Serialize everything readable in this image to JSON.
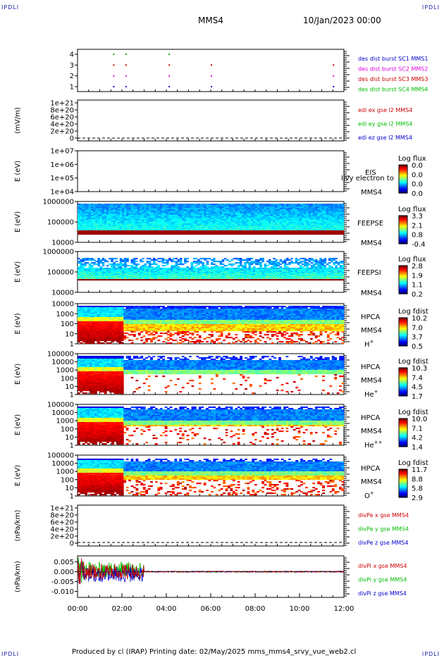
{
  "corner_label": "IPDLI",
  "header": {
    "spacecraft": "MMS4",
    "date": "10/Jan/2023 00:00"
  },
  "footer": {
    "text": "Produced by cl (IRAP)   Printing date: 02/May/2025   mms_mms4_srvy_vue_web2.cl"
  },
  "colors": {
    "red": "#cc0000",
    "green": "#00bb00",
    "blue": "#0000cc",
    "magenta": "#dd00dd",
    "black": "#000000"
  },
  "chart_data": [
    {
      "type": "scatter",
      "panel": "burst",
      "yticks": [
        "4",
        "3",
        "2",
        "1"
      ],
      "legend": [
        {
          "text": "des dist burst SC1 MMS1",
          "color": "#0000cc"
        },
        {
          "text": "des dist burst SC2 MMS2",
          "color": "#dd00dd"
        },
        {
          "text": "des dist burst SC3 MMS3",
          "color": "#cc0000"
        },
        {
          "text": "des dist burst SC4 MMS4",
          "color": "#00bb00"
        }
      ],
      "series": [
        {
          "name": "SC4",
          "y": 4,
          "x": [
            1.6,
            2.15,
            4.1
          ]
        },
        {
          "name": "SC3",
          "y": 3,
          "x": [
            1.6,
            2.15,
            4.1,
            6.0,
            11.5
          ]
        },
        {
          "name": "SC2",
          "y": 2,
          "x": [
            1.6,
            2.15,
            4.1,
            6.0,
            11.5
          ]
        },
        {
          "name": "SC1",
          "y": 1,
          "x": [
            1.6,
            2.15,
            4.1,
            6.0,
            11.5
          ]
        }
      ]
    },
    {
      "type": "line",
      "panel": "edi_e",
      "ylabel": "(mV/m)",
      "yticks": [
        "1e+21",
        "8e+20",
        "6e+20",
        "4e+20",
        "2e+20",
        "0"
      ],
      "legend": [
        {
          "text": "edi ex gse l2 MMS4",
          "color": "#cc0000"
        },
        {
          "text": "edi ey gse l2 MMS4",
          "color": "#00bb00"
        },
        {
          "text": "edi ez gse l2 MMS4",
          "color": "#0000cc"
        }
      ]
    },
    {
      "type": "heatmap",
      "panel": "eis",
      "ylabel": "E (eV)",
      "yticks": [
        "1e+07",
        "1e+06",
        "1e+05",
        "1e+04"
      ],
      "instrument": "EIS",
      "subtitle": "Ilvy electron to",
      "sc": "MMS4",
      "colorbar": {
        "title": "Log flux",
        "ticks": [
          "0.0",
          "0.0",
          "0.0",
          "0.0"
        ]
      }
    },
    {
      "type": "heatmap",
      "panel": "feeps_e",
      "ylabel": "E (eV)",
      "yticks": [
        "1000000",
        "100000",
        "10000"
      ],
      "instrument": "FEEPSE",
      "sc": "MMS4",
      "colorbar": {
        "title": "Log flux",
        "ticks": [
          "3.3",
          "2.1",
          "0.8",
          "-0.4"
        ]
      }
    },
    {
      "type": "heatmap",
      "panel": "feeps_i",
      "ylabel": "E (eV)",
      "yticks": [
        "1000000",
        "100000",
        "10000"
      ],
      "instrument": "FEEPSI",
      "sc": "MMS4",
      "colorbar": {
        "title": "Log flux",
        "ticks": [
          "2.8",
          "1.9",
          "1.1",
          "0.2"
        ]
      }
    },
    {
      "type": "heatmap",
      "panel": "hpca_h",
      "ylabel": "E (eV)",
      "yticks": [
        "10000",
        "1000",
        "100",
        "10",
        "1"
      ],
      "instrument": "HPCA",
      "sc": "MMS4",
      "species": "H",
      "charge": "+",
      "colorbar": {
        "title": "Log fdist",
        "ticks": [
          "10.2",
          "7.0",
          "3.7",
          "0.5"
        ]
      }
    },
    {
      "type": "heatmap",
      "panel": "hpca_he",
      "ylabel": "E (eV)",
      "yticks": [
        "100000",
        "10000",
        "1000",
        "100",
        "10",
        "1"
      ],
      "instrument": "HPCA",
      "sc": "MMS4",
      "species": "He",
      "charge": "+",
      "colorbar": {
        "title": "Log fdist",
        "ticks": [
          "10.3",
          "7.4",
          "4.5",
          "1.7"
        ]
      }
    },
    {
      "type": "heatmap",
      "panel": "hpca_hepp",
      "ylabel": "E (eV)",
      "yticks": [
        "100000",
        "10000",
        "1000",
        "100",
        "10",
        "1"
      ],
      "instrument": "HPCA",
      "sc": "MMS4",
      "species": "He",
      "charge": "++",
      "colorbar": {
        "title": "Log fdist",
        "ticks": [
          "10.0",
          "7.1",
          "4.2",
          "1.4"
        ]
      }
    },
    {
      "type": "heatmap",
      "panel": "hpca_o",
      "ylabel": "E (eV)",
      "yticks": [
        "100000",
        "10000",
        "1000",
        "100",
        "10",
        "1"
      ],
      "instrument": "HPCA",
      "sc": "MMS4",
      "species": "O",
      "charge": "+",
      "colorbar": {
        "title": "Log fdist",
        "ticks": [
          "11.7",
          "8.8",
          "5.8",
          "2.9"
        ]
      }
    },
    {
      "type": "line",
      "panel": "divpe",
      "ylabel": "(nPa/km)",
      "yticks": [
        "1e+21",
        "8e+20",
        "6e+20",
        "4e+20",
        "2e+20",
        "0"
      ],
      "legend": [
        {
          "text": "divPe x gse MMS4",
          "color": "#cc0000"
        },
        {
          "text": "divPe y gse MMS4",
          "color": "#00bb00"
        },
        {
          "text": "divPe z gse MMS4",
          "color": "#0000cc"
        }
      ]
    },
    {
      "type": "line",
      "panel": "divpi",
      "ylabel": "(nPa/km)",
      "yticks": [
        "0.005",
        "0.000",
        "-0.005",
        "-0.010"
      ],
      "ylim": [
        -0.013,
        0.008
      ],
      "legend": [
        {
          "text": "divPi x gse MMS4",
          "color": "#cc0000"
        },
        {
          "text": "divPi y gse MMS4",
          "color": "#00bb00"
        },
        {
          "text": "divPi z gse MMS4",
          "color": "#0000cc"
        }
      ]
    }
  ],
  "xaxis": {
    "xlim": [
      0,
      12
    ],
    "ticks": [
      "00:00",
      "02:00",
      "04:00",
      "06:00",
      "08:00",
      "10:00",
      "12:00"
    ]
  }
}
